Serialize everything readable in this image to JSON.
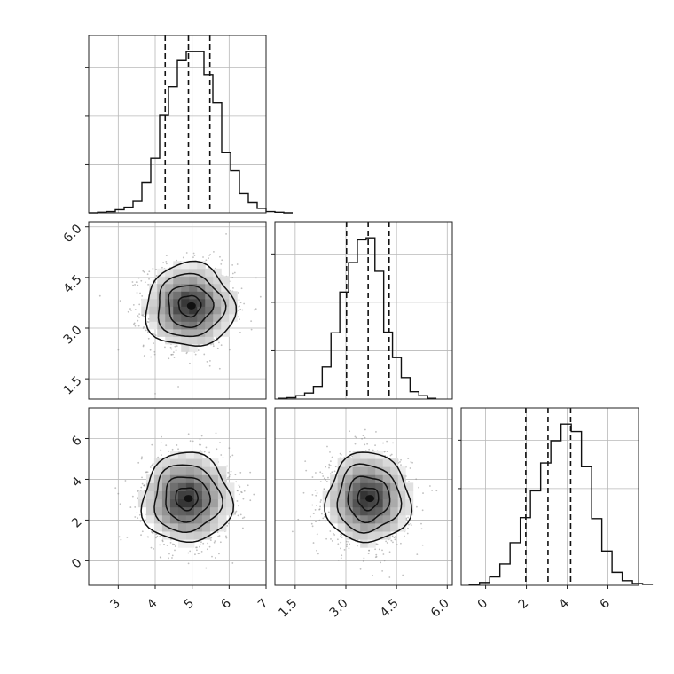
{
  "chart_data": {
    "type": "corner",
    "title": "",
    "grid": true,
    "parameters": [
      {
        "index": 0,
        "range": [
          2.2,
          7.0
        ],
        "ticks": [
          3,
          4,
          5,
          6,
          7
        ],
        "tick_labels": [
          "3",
          "4",
          "5",
          "6",
          "7"
        ],
        "quantiles": [
          4.27,
          4.9,
          5.48
        ],
        "hist_edges_from": 2.2,
        "hist_bin_width": 0.24,
        "hist_counts": [
          0,
          1,
          2,
          5,
          9,
          18,
          48,
          86,
          153,
          198,
          239,
          253,
          253,
          216,
          173,
          95,
          66,
          30,
          16,
          7,
          2,
          1,
          0
        ]
      },
      {
        "index": 1,
        "range": [
          0.9,
          6.15
        ],
        "ticks": [
          1.5,
          3.0,
          4.5,
          6.0
        ],
        "tick_labels": [
          "1.5",
          "3.0",
          "4.5",
          "6.0"
        ],
        "quantiles": [
          3.02,
          3.66,
          4.28
        ],
        "hist_edges_from": 1.0,
        "hist_bin_width": 0.26,
        "hist_counts": [
          1,
          2,
          5,
          9,
          19,
          48,
          99,
          160,
          204,
          238,
          241,
          191,
          100,
          62,
          32,
          11,
          5,
          1
        ]
      },
      {
        "index": 2,
        "range": [
          -1.2,
          7.5
        ],
        "ticks": [
          0,
          2,
          4,
          6
        ],
        "tick_labels": [
          "0",
          "2",
          "4",
          "6"
        ],
        "quantiles": [
          1.97,
          3.06,
          4.17
        ],
        "hist_edges_from": -0.8,
        "hist_bin_width": 0.5,
        "hist_counts": [
          1,
          3,
          9,
          23,
          46,
          73,
          102,
          132,
          156,
          174,
          166,
          128,
          72,
          37,
          14,
          5,
          2,
          1
        ]
      }
    ],
    "joint_panels": [
      {
        "x_param": 0,
        "y_param": 1,
        "center": [
          4.93,
          3.66
        ],
        "sigma": [
          0.6,
          0.62
        ],
        "y_ticks": [
          1.5,
          3.0,
          4.5,
          6.0
        ],
        "y_tick_labels": [
          "1.5",
          "3.0",
          "4.5",
          "6.0"
        ]
      },
      {
        "x_param": 0,
        "y_param": 2,
        "center": [
          4.85,
          3.06
        ],
        "sigma": [
          0.6,
          1.1
        ],
        "y_ticks": [
          0,
          2,
          4,
          6
        ],
        "y_tick_labels": [
          "0",
          "2",
          "4",
          "6"
        ]
      },
      {
        "x_param": 1,
        "y_param": 2,
        "center": [
          3.66,
          3.06
        ],
        "sigma": [
          0.62,
          1.1
        ],
        "y_ticks": [
          0,
          2,
          4,
          6
        ],
        "y_tick_labels": [
          "0",
          "2",
          "4",
          "6"
        ]
      }
    ],
    "contour_levels_sigma": [
      0.5,
      1.0,
      1.5,
      2.0
    ]
  },
  "colors": {
    "line": "#111111",
    "grid": "#b8b8b8",
    "points": "#8c8c8c",
    "cell_dark": "#3a3a3a",
    "cell_light": "#f4f4f4"
  }
}
